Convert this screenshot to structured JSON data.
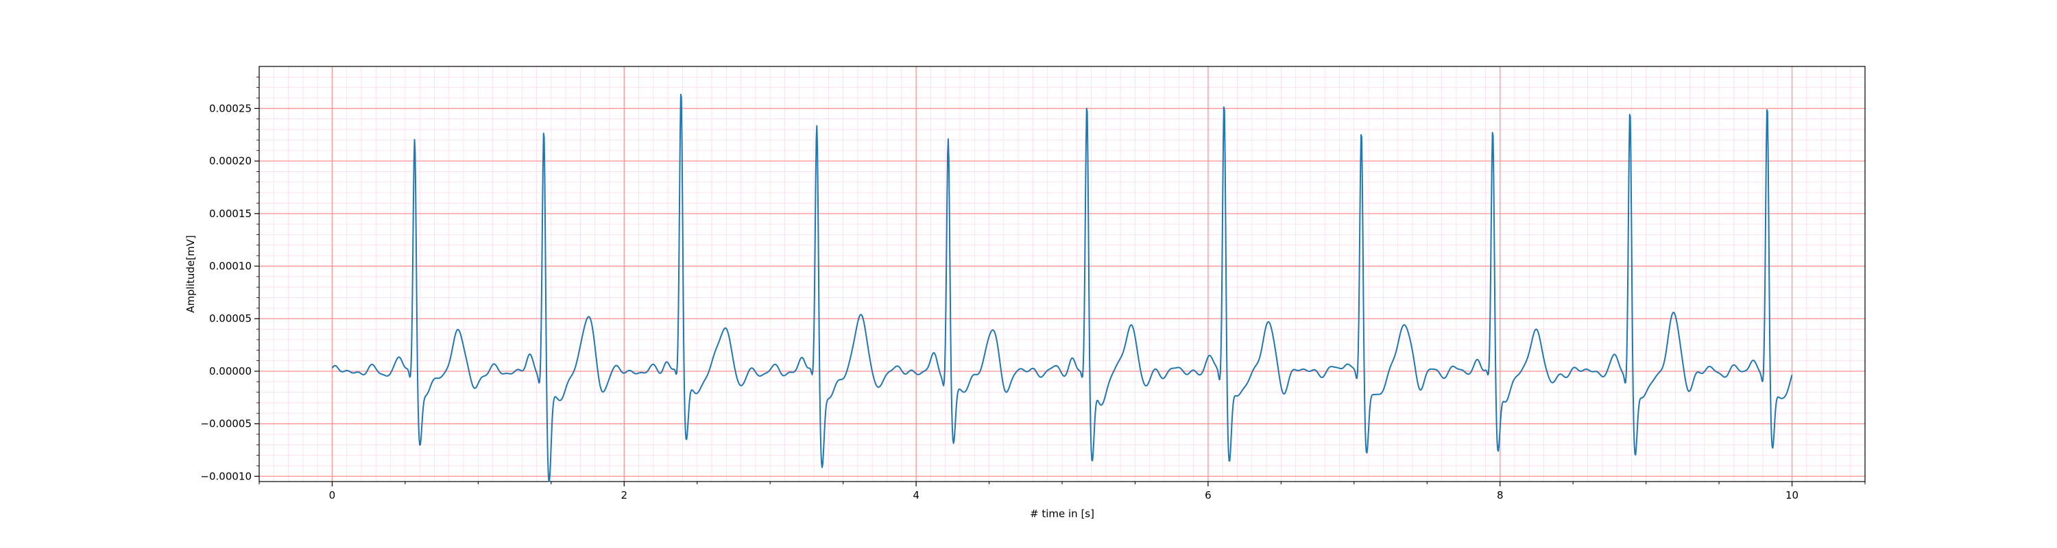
{
  "chart_data": {
    "type": "line",
    "title": "",
    "xlabel": "# time in [s]",
    "ylabel": "Amplitude[mV]",
    "xlim": [
      -0.5,
      10.5
    ],
    "ylim": [
      -0.000105,
      0.00029
    ],
    "x_ticks": [
      0,
      2,
      4,
      6,
      8,
      10
    ],
    "x_tick_labels": [
      "0",
      "2",
      "4",
      "6",
      "8",
      "10"
    ],
    "y_ticks": [
      -0.0001,
      -5e-05,
      0.0,
      5e-05,
      0.0001,
      0.00015,
      0.0002,
      0.00025
    ],
    "y_tick_labels": [
      "−0.00010",
      "−0.00005",
      "0.00000",
      "0.00005",
      "0.00010",
      "0.00015",
      "0.00020",
      "0.00025"
    ],
    "grid": {
      "major": true,
      "minor": true,
      "major_color": "#ff9999",
      "minor_color": "#ffd9ec"
    },
    "legend": "none",
    "series_color": "#1f77b4",
    "sampling": {
      "x_start": 0,
      "x_end": 10,
      "step": 0.02
    },
    "beats": [
      {
        "r": 0.565,
        "r_amp": 0.000229,
        "s_amp": -5.8e-05,
        "t_amp": 3.7e-05
      },
      {
        "r": 1.45,
        "r_amp": 0.000243,
        "s_amp": -8.8e-05,
        "t_amp": 5e-05
      },
      {
        "r": 2.39,
        "r_amp": 0.000272,
        "s_amp": -5.5e-05,
        "t_amp": 4.5e-05
      },
      {
        "r": 3.32,
        "r_amp": 0.000243,
        "s_amp": -7.3e-05,
        "t_amp": 5.4e-05
      },
      {
        "r": 4.22,
        "r_amp": 0.000229,
        "s_amp": -5.9e-05,
        "t_amp": 3.5e-05
      },
      {
        "r": 5.17,
        "r_amp": 0.000261,
        "s_amp": -7.5e-05,
        "t_amp": 4.4e-05
      },
      {
        "r": 6.11,
        "r_amp": 0.00027,
        "s_amp": -7.3e-05,
        "t_amp": 4.4e-05
      },
      {
        "r": 7.05,
        "r_amp": 0.000236,
        "s_amp": -6.8e-05,
        "t_amp": 4.7e-05
      },
      {
        "r": 7.95,
        "r_amp": 0.000234,
        "s_amp": -6.5e-05,
        "t_amp": 4e-05
      },
      {
        "r": 8.89,
        "r_amp": 0.000259,
        "s_amp": -7e-05,
        "t_amp": 5e-05
      },
      {
        "r": 9.83,
        "r_amp": 0.000258,
        "s_amp": -6.6e-05,
        "t_amp": 0.0
      }
    ],
    "series": [
      {
        "values": []
      }
    ]
  }
}
